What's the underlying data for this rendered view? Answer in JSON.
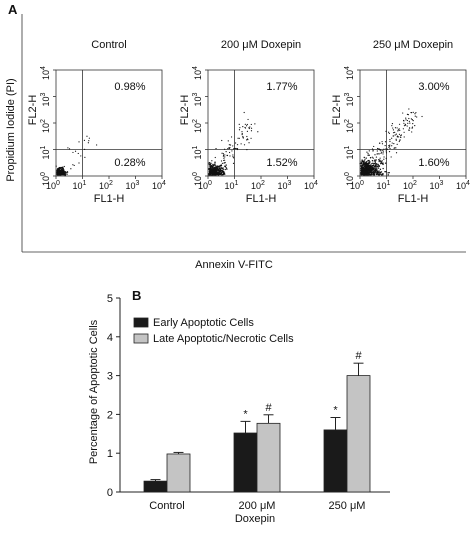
{
  "figure": {
    "panel_a_label": "A",
    "panel_b_label": "B",
    "y_axis_label": "Propidium Iodide (PI)",
    "x_axis_label": "Annexin V-FITC",
    "flow_plots": [
      {
        "title": "Control",
        "ylabel": "FL2-H",
        "xlabel": "FL1-H",
        "upper_right": "0.98%",
        "lower_right": "0.28%"
      },
      {
        "title": "200 μM Doxepin",
        "ylabel": "FL2-H",
        "xlabel": "FL1-H",
        "upper_right": "1.77%",
        "lower_right": "1.52%"
      },
      {
        "title": "250 μM Doxepin",
        "ylabel": "FL2-H",
        "xlabel": "FL1-H",
        "upper_right": "3.00%",
        "lower_right": "1.60%"
      }
    ],
    "log_ticks": [
      "0",
      "1",
      "2",
      "3",
      "4"
    ],
    "colors": {
      "early": "#1a1a1a",
      "late": "#c4c4c4"
    }
  },
  "chart_data": [
    {
      "type": "scatter",
      "title": "Control",
      "xlabel": "FL1-H",
      "ylabel": "FL2-H",
      "xscale": "log",
      "yscale": "log",
      "xlim": [
        1,
        10000
      ],
      "ylim": [
        1,
        10000
      ],
      "quadrant_gate": [
        10,
        10
      ],
      "quadrants": {
        "upper_right": 0.98,
        "lower_right": 0.28
      }
    },
    {
      "type": "scatter",
      "title": "200 μM Doxepin",
      "xlabel": "FL1-H",
      "ylabel": "FL2-H",
      "xscale": "log",
      "yscale": "log",
      "xlim": [
        1,
        10000
      ],
      "ylim": [
        1,
        10000
      ],
      "quadrant_gate": [
        10,
        10
      ],
      "quadrants": {
        "upper_right": 1.77,
        "lower_right": 1.52
      }
    },
    {
      "type": "scatter",
      "title": "250 μM Doxepin",
      "xlabel": "FL1-H",
      "ylabel": "FL2-H",
      "xscale": "log",
      "yscale": "log",
      "xlim": [
        1,
        10000
      ],
      "ylim": [
        1,
        10000
      ],
      "quadrant_gate": [
        10,
        10
      ],
      "quadrants": {
        "upper_right": 3.0,
        "lower_right": 1.6
      }
    },
    {
      "type": "bar",
      "categories": [
        "Control",
        "200 μM",
        "250 μM"
      ],
      "xlabel": "Doxepin",
      "ylabel": "Percentage of Apoptotic Cells",
      "ylim": [
        0,
        5
      ],
      "yticks": [
        0,
        1,
        2,
        3,
        4,
        5
      ],
      "legend_position": "top-left",
      "series": [
        {
          "name": "Early Apoptotic Cells",
          "values": [
            0.28,
            1.52,
            1.6
          ],
          "errors": [
            0.04,
            0.3,
            0.32
          ],
          "markers": [
            "",
            "*",
            "*"
          ]
        },
        {
          "name": "Late Apoptotic/Necrotic Cells",
          "values": [
            0.98,
            1.77,
            3.0
          ],
          "errors": [
            0.04,
            0.22,
            0.32
          ],
          "markers": [
            "",
            "#",
            "#"
          ]
        }
      ]
    }
  ]
}
